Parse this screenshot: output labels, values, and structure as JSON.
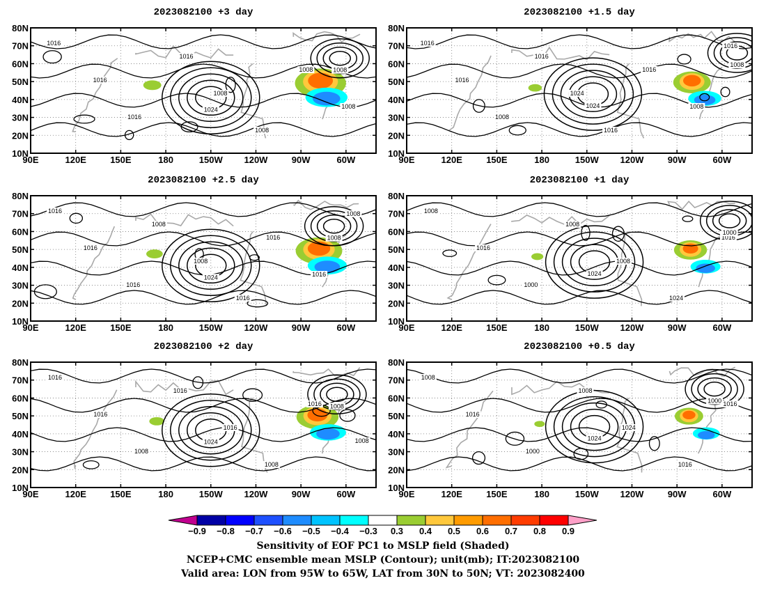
{
  "chart_data": {
    "type": "map-contour",
    "panels": [
      {
        "title": "2023082100 +3 day",
        "lead_days": 3,
        "lows": [
          [
            "64W",
            "63N",
            "1008"
          ]
        ],
        "highs": [
          [
            "150W",
            "41N",
            "1024"
          ]
        ],
        "contour_labels": [
          "1016",
          "1016",
          "1016",
          "1016",
          "1008",
          "1008",
          "1008",
          "1008"
        ]
      },
      {
        "title": "2023082100 +1.5 day",
        "lead_days": 1.5,
        "lows": [
          [
            "50W",
            "66N",
            "1008"
          ]
        ],
        "highs": [
          [
            "146W",
            "43N",
            "1024"
          ]
        ],
        "contour_labels": [
          "1016",
          "1016",
          "1008",
          "1016",
          "1024",
          "1016",
          "1016",
          "1008",
          "1016"
        ]
      },
      {
        "title": "2023082100 +2.5 day",
        "lead_days": 2.5,
        "lows": [
          [
            "68W",
            "63N",
            "1008"
          ]
        ],
        "highs": [
          [
            "150W",
            "41N",
            "1024"
          ]
        ],
        "contour_labels": [
          "1016",
          "1016",
          "1016",
          "1008",
          "1008",
          "1016",
          "1016",
          "1016",
          "1008"
        ]
      },
      {
        "title": "2023082100 +1 day",
        "lead_days": 1,
        "lows": [
          [
            "55W",
            "66N",
            "1000"
          ]
        ],
        "highs": [
          [
            "145W",
            "43N",
            "1024"
          ]
        ],
        "contour_labels": [
          "1008",
          "1016",
          "1000",
          "1008",
          "1008",
          "1024",
          "1016"
        ]
      },
      {
        "title": "2023082100 +2 day",
        "lead_days": 2,
        "lows": [
          [
            "66W",
            "62N",
            "1008"
          ]
        ],
        "highs": [
          [
            "150W",
            "42N",
            "1024"
          ]
        ],
        "contour_labels": [
          "1016",
          "1016",
          "1008",
          "1016",
          "1016",
          "1008",
          "1016",
          "1008"
        ]
      },
      {
        "title": "2023082100 +0.5 day",
        "lead_days": 0.5,
        "lows": [
          [
            "65W",
            "65N",
            "1000"
          ]
        ],
        "highs": [
          [
            "145W",
            "44N",
            "1024"
          ]
        ],
        "contour_labels": [
          "1008",
          "1016",
          "1000",
          "1008",
          "1024",
          "1016",
          "1016"
        ]
      }
    ],
    "x_ticks": [
      "90E",
      "120E",
      "150E",
      "180",
      "150W",
      "120W",
      "90W",
      "60W"
    ],
    "y_ticks": [
      "10N",
      "20N",
      "30N",
      "40N",
      "50N",
      "60N",
      "70N",
      "80N"
    ],
    "lon_range": [
      "90E",
      "40W"
    ],
    "lat_range": [
      "10N",
      "80N"
    ],
    "grid": "dotted",
    "colorbar": {
      "labels": [
        "-0.9",
        "-0.8",
        "-0.7",
        "-0.6",
        "-0.5",
        "-0.4",
        "-0.3",
        "0.3",
        "0.4",
        "0.5",
        "0.6",
        "0.7",
        "0.8",
        "0.9"
      ],
      "colors": [
        "#c1008f",
        "#0000a5",
        "#0000ff",
        "#1e50ff",
        "#1e8cff",
        "#00c3ff",
        "#00ffff",
        "#ffffff",
        "#9acd32",
        "#ffc83c",
        "#ff9b00",
        "#ff6e00",
        "#ff3c00",
        "#ff0000",
        "#ffa0c8"
      ]
    },
    "caption_lines": [
      "Sensitivity of EOF PC1 to MSLP field (Shaded)",
      "NCEP+CMC ensemble mean MSLP (Contour); unit(mb); IT:2023082100",
      "Valid area: LON from 95W to 65W, LAT from 30N to 50N; VT: 2023082400"
    ]
  }
}
